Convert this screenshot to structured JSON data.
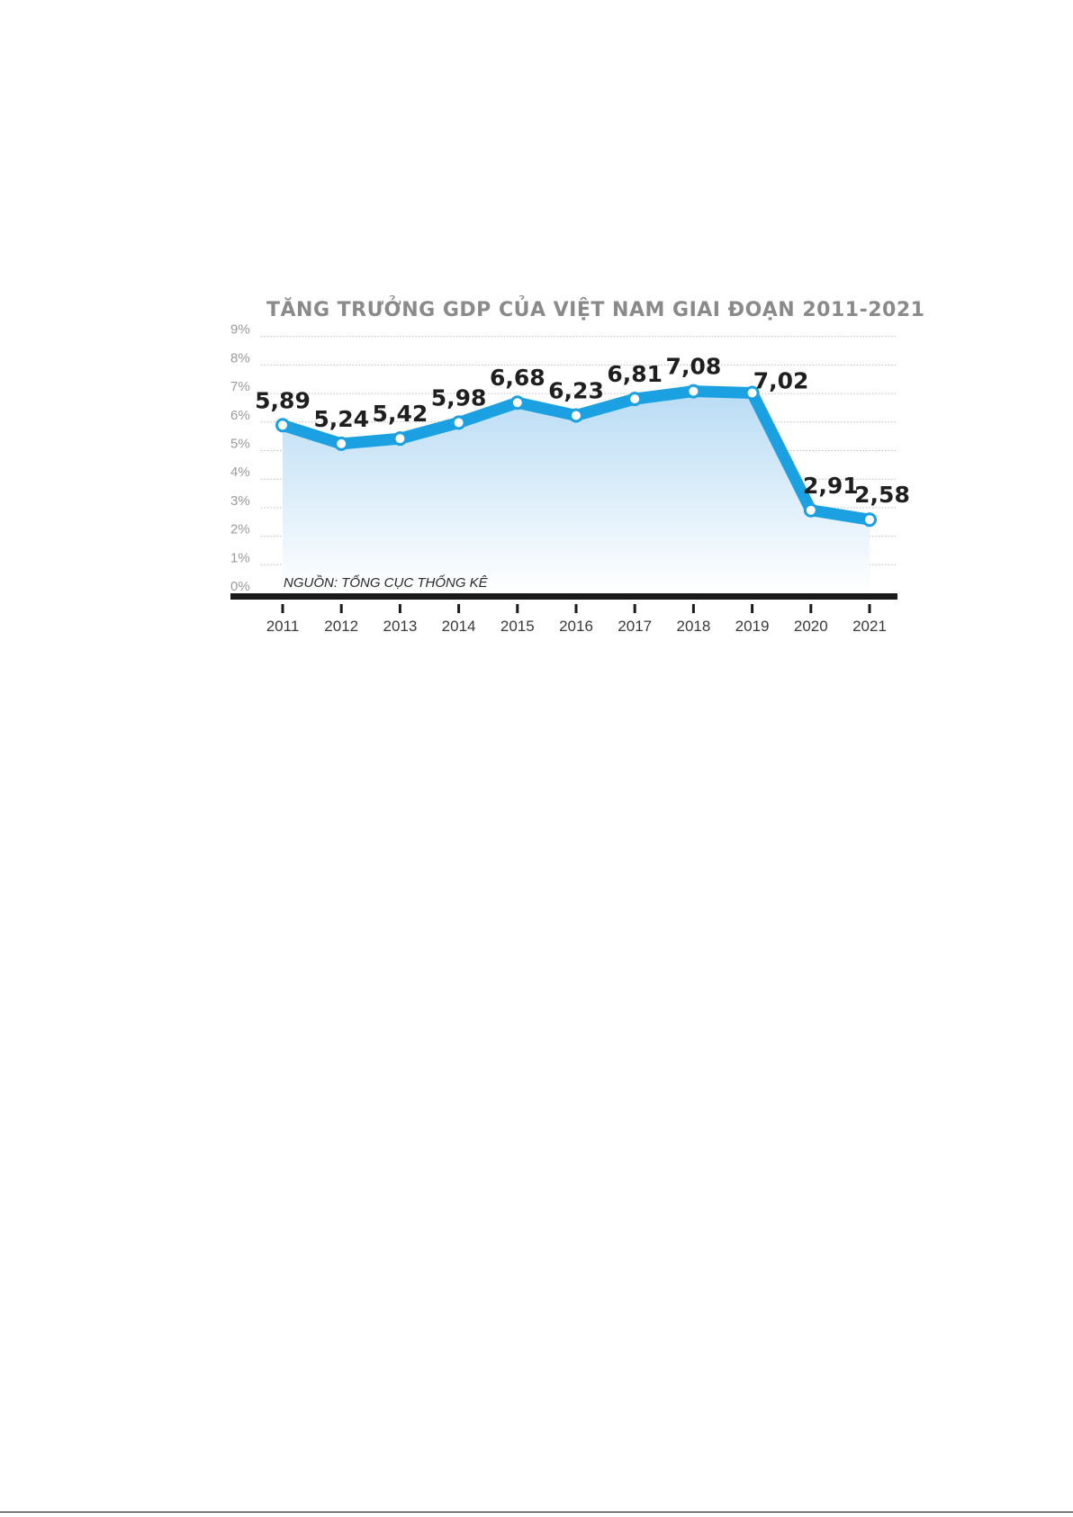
{
  "chart_data": {
    "type": "line",
    "title": "TĂNG TRƯỞNG GDP CỦA VIỆT NAM GIAI ĐOẠN 2011-2021",
    "source": "NGUỒN: TỔNG CỤC THỐNG KÊ",
    "categories": [
      "2011",
      "2012",
      "2013",
      "2014",
      "2015",
      "2016",
      "2017",
      "2018",
      "2019",
      "2020",
      "2021"
    ],
    "values": [
      5.89,
      5.24,
      5.42,
      5.98,
      6.68,
      6.23,
      6.81,
      7.08,
      7.02,
      2.91,
      2.58
    ],
    "value_labels": [
      "5,89",
      "5,24",
      "5,42",
      "5,98",
      "6,68",
      "6,23",
      "6,81",
      "7,08",
      "7,02",
      "2,91",
      "2,58"
    ],
    "yticks": [
      "0%",
      "1%",
      "2%",
      "3%",
      "4%",
      "5%",
      "6%",
      "7%",
      "8%",
      "9%"
    ],
    "ylim": [
      0,
      9
    ],
    "grid": true,
    "area_fill": true,
    "colors": {
      "line": "#1ba1e2",
      "area_top": "#b9dcf4",
      "title": "#8a8a8a",
      "axis": "#1a1a1a"
    }
  }
}
